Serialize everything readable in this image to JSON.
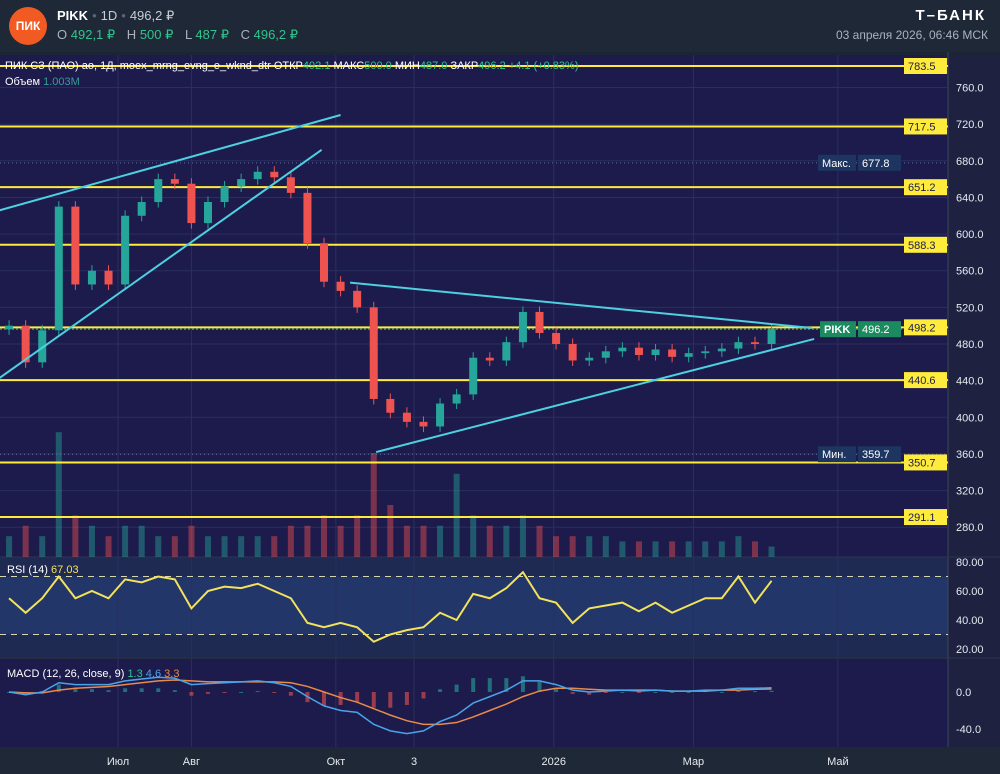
{
  "header": {
    "logo_text": "ПИК",
    "ticker": "PIKK",
    "interval": "1D",
    "price": "496,2 ₽",
    "ohlc": [
      {
        "k": "O",
        "v": "492,1 ₽"
      },
      {
        "k": "H",
        "v": "500 ₽"
      },
      {
        "k": "L",
        "v": "487 ₽"
      },
      {
        "k": "C",
        "v": "496,2 ₽"
      }
    ],
    "brand": "Т–БАНК",
    "timestamp": "03 апреля 2026, 06:46 МСК"
  },
  "legend": {
    "title": "ПИК СЗ (ПАО) ао, 1Д, moex_mrng_evng_e_wknd_dtr",
    "open_label": "ОТКР",
    "open": "492.1",
    "high_label": "МАКС",
    "high": "500.0",
    "low_label": "МИН",
    "low": "487.0",
    "close_label": "ЗАКР",
    "close": "496.2",
    "change": "+4.1 (+0.83%)",
    "volume_label": "Объем",
    "volume": "1.003M",
    "rsi_label": "RSI (14)",
    "rsi_value": "67.03",
    "macd_label": "MACD (12, 26, close, 9)",
    "macd_hist": "1.3",
    "macd_value": "4.6",
    "macd_signal": "3.3"
  },
  "chart_data": {
    "type": "candlestick",
    "start_date": "2025-05-16",
    "step_days": 7,
    "colors": {
      "up": "#26a69a",
      "down": "#ef5350",
      "level": "#ffeb3b",
      "trend": "#4dd0e1",
      "price": "#1b8a5f",
      "rsi": "#f3e25b",
      "macd": "#4aa3e8",
      "signal": "#e88a4a"
    },
    "close": [
      500,
      460,
      495,
      630,
      545,
      560,
      545,
      620,
      635,
      660,
      655,
      612,
      635,
      652,
      660,
      668,
      662,
      645,
      590,
      548,
      538,
      520,
      420,
      405,
      395,
      390,
      415,
      425,
      465,
      462,
      482,
      515,
      492,
      480,
      462,
      465,
      472,
      476,
      468,
      474,
      466,
      470,
      472,
      475,
      482,
      480,
      496.2
    ],
    "volume_millions": [
      2,
      3,
      2,
      12,
      4,
      3,
      2,
      3,
      3,
      2,
      2,
      3,
      2,
      2,
      2,
      2,
      2,
      3,
      3,
      4,
      3,
      4,
      10,
      5,
      3,
      3,
      3,
      8,
      4,
      3,
      3,
      4,
      3,
      2,
      2,
      2,
      2,
      1.5,
      1.5,
      1.5,
      1.5,
      1.5,
      1.5,
      1.5,
      2,
      1.5,
      1.003
    ],
    "rsi": [
      55,
      45,
      55,
      70,
      55,
      60,
      55,
      68,
      66,
      70,
      68,
      48,
      60,
      63,
      62,
      65,
      60,
      55,
      38,
      35,
      38,
      35,
      25,
      30,
      33,
      35,
      45,
      40,
      58,
      55,
      62,
      73,
      55,
      52,
      38,
      48,
      50,
      52,
      46,
      52,
      45,
      50,
      55,
      55,
      70,
      52,
      67.03
    ],
    "macd": [
      0,
      -3,
      0,
      10,
      8,
      8,
      8,
      12,
      14,
      16,
      15,
      8,
      9,
      10,
      11,
      12,
      10,
      6,
      -5,
      -15,
      -20,
      -22,
      -35,
      -42,
      -45,
      -42,
      -32,
      -25,
      -12,
      -5,
      2,
      12,
      12,
      8,
      2,
      0,
      1,
      2,
      1,
      2,
      1,
      1,
      2,
      2,
      4,
      4,
      4.6
    ],
    "signal": [
      0,
      -1,
      -1,
      2,
      4,
      5,
      6,
      8,
      10,
      12,
      13,
      12,
      11,
      11,
      11,
      11,
      11,
      10,
      6,
      0,
      -6,
      -11,
      -18,
      -25,
      -31,
      -35,
      -35,
      -33,
      -27,
      -20,
      -13,
      -5,
      1,
      4,
      4,
      3,
      2,
      2,
      2,
      2,
      1,
      1,
      1,
      2,
      2,
      3,
      3.3
    ],
    "levels": [
      "783.5",
      "717.5",
      "651.2",
      "588.3",
      "498.2",
      "440.6",
      "350.7",
      "291.1"
    ],
    "current_price": {
      "label": "PIKK",
      "value": "496.2"
    },
    "max": {
      "label": "Макс.",
      "value": "677.8"
    },
    "min": {
      "label": "Мин.",
      "value": "359.7"
    },
    "trendlines": [
      {
        "from": [
          "2025-05-12",
          626
        ],
        "to": [
          "2025-10-03",
          730
        ]
      },
      {
        "from": [
          "2025-05-12",
          443
        ],
        "to": [
          "2025-09-25",
          692
        ]
      },
      {
        "from": [
          "2025-10-07",
          547
        ],
        "to": [
          "2026-04-20",
          497.5
        ]
      },
      {
        "from": [
          "2025-10-18",
          362
        ],
        "to": [
          "2026-04-21",
          485.5
        ]
      }
    ],
    "price_ticks": [
      "760.0",
      "720.0",
      "680.0",
      "640.0",
      "600.0",
      "560.0",
      "520.0",
      "480.0",
      "440.0",
      "400.0",
      "360.0",
      "320.0",
      "280.0"
    ],
    "rsi_ticks": [
      "80.00",
      "60.00",
      "40.00",
      "20.00"
    ],
    "rsi_bands": [
      30,
      70
    ],
    "macd_ticks": [
      "0.0",
      "-40.0"
    ],
    "x_ticks": [
      {
        "label": "Июл",
        "date": "2025-07-01"
      },
      {
        "label": "Авг",
        "date": "2025-08-01"
      },
      {
        "label": "Окт",
        "date": "2025-10-01"
      },
      {
        "label": "3",
        "date": "2025-11-03"
      },
      {
        "label": "2026",
        "date": "2026-01-01"
      },
      {
        "label": "Мар",
        "date": "2026-03-01"
      },
      {
        "label": "Май",
        "date": "2026-05-01"
      }
    ]
  }
}
